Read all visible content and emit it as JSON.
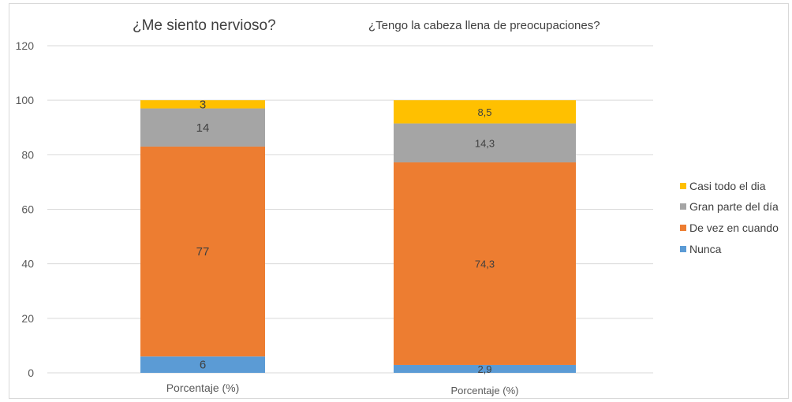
{
  "chart_data": {
    "type": "bar",
    "stacked": true,
    "panels": [
      {
        "title": "¿Me siento nervioso?",
        "category": "Porcentaje (%)",
        "values": {
          "Nunca": 6,
          "De vez en cuando": 77,
          "Gran parte del día": 14,
          "Casi todo el dia": 3
        },
        "labels": {
          "Nunca": "6",
          "De vez en cuando": "77",
          "Gran parte del día": "14",
          "Casi todo el dia": "3"
        }
      },
      {
        "title": "¿Tengo la cabeza llena de preocupaciones?",
        "category": "Porcentaje (%)",
        "values": {
          "Nunca": 2.9,
          "De vez en cuando": 74.3,
          "Gran parte del día": 14.3,
          "Casi todo el dia": 8.5
        },
        "labels": {
          "Nunca": "2,9",
          "De vez en cuando": "74,3",
          "Gran parte del día": "14,3",
          "Casi todo el dia": "8,5"
        }
      }
    ],
    "series": [
      {
        "name": "Nunca",
        "color": "#5b9bd5"
      },
      {
        "name": "De vez en cuando",
        "color": "#ed7d31"
      },
      {
        "name": "Gran parte del día",
        "color": "#a5a5a5"
      },
      {
        "name": "Casi todo el dia",
        "color": "#ffc000"
      }
    ],
    "legend_order": [
      "Casi todo el dia",
      "Gran parte del día",
      "De vez en cuando",
      "Nunca"
    ],
    "yticks": [
      "0",
      "20",
      "40",
      "60",
      "80",
      "100",
      "120"
    ],
    "ylim": [
      0,
      120
    ],
    "grid": true,
    "legend_position": "right"
  }
}
